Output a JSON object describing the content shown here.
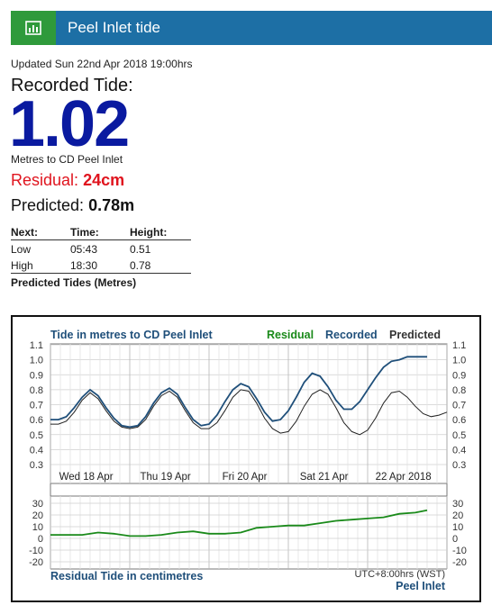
{
  "header": {
    "title": "Peel Inlet tide",
    "icon": "bar-chart-icon"
  },
  "updated": "Updated Sun 22nd Apr 2018 19:00hrs",
  "recorded": {
    "label": "Recorded Tide:",
    "value": "1.02",
    "units": "Metres to CD Peel Inlet"
  },
  "residual": {
    "label": "Residual:",
    "value": "24cm"
  },
  "predicted": {
    "label": "Predicted:",
    "value": "0.78m"
  },
  "next_tides": {
    "headers": [
      "Next:",
      "Time:",
      "Height:"
    ],
    "rows": [
      [
        "Low",
        "05:43",
        "0.51"
      ],
      [
        "High",
        "18:30",
        "0.78"
      ]
    ],
    "caption": "Predicted Tides (Metres)"
  },
  "colors": {
    "header_bg": "#1d6fa5",
    "icon_bg": "#2f9a3b",
    "value_blue": "#0a1aa0",
    "residual_red": "#e0141e",
    "recorded_line": "#1f4f7a",
    "predicted_line": "#222222",
    "residual_line": "#1a8a1a"
  },
  "chart_data": [
    {
      "type": "line",
      "title": "Tide in metres to CD Peel Inlet",
      "legend": [
        "Residual",
        "Recorded",
        "Predicted"
      ],
      "legend_position": "top-right",
      "y_ticks": [
        "1.1",
        "1.0",
        "0.9",
        "0.8",
        "0.7",
        "0.6",
        "0.5",
        "0.4",
        "0.3"
      ],
      "ylim": [
        0.3,
        1.1
      ],
      "x_labels": [
        "Wed 18 Apr",
        "Thu 19 Apr",
        "Fri 20 Apr",
        "Sat 21 Apr",
        "22 Apr 2018"
      ],
      "grid": true,
      "series": [
        {
          "name": "Recorded",
          "x": [
            0,
            0.1,
            0.2,
            0.3,
            0.4,
            0.5,
            0.6,
            0.7,
            0.8,
            0.9,
            1.0,
            1.1,
            1.2,
            1.3,
            1.4,
            1.5,
            1.6,
            1.7,
            1.8,
            1.9,
            2.0,
            2.1,
            2.2,
            2.3,
            2.4,
            2.5,
            2.6,
            2.7,
            2.8,
            2.9,
            3.0,
            3.1,
            3.2,
            3.3,
            3.4,
            3.5,
            3.6,
            3.7,
            3.8,
            3.9,
            4.0,
            4.1,
            4.2,
            4.3,
            4.4,
            4.5,
            4.6,
            4.65,
            4.7,
            4.75
          ],
          "y": [
            0.6,
            0.6,
            0.62,
            0.68,
            0.75,
            0.8,
            0.76,
            0.68,
            0.61,
            0.56,
            0.55,
            0.56,
            0.62,
            0.71,
            0.78,
            0.81,
            0.77,
            0.68,
            0.6,
            0.56,
            0.57,
            0.63,
            0.72,
            0.8,
            0.84,
            0.82,
            0.74,
            0.65,
            0.59,
            0.6,
            0.66,
            0.75,
            0.85,
            0.91,
            0.89,
            0.82,
            0.73,
            0.67,
            0.67,
            0.72,
            0.8,
            0.88,
            0.95,
            0.99,
            1.0,
            1.02,
            1.02,
            1.02,
            1.02,
            1.02
          ]
        },
        {
          "name": "Predicted",
          "x": [
            0,
            0.1,
            0.2,
            0.3,
            0.4,
            0.5,
            0.6,
            0.7,
            0.8,
            0.9,
            1.0,
            1.1,
            1.2,
            1.3,
            1.4,
            1.5,
            1.6,
            1.7,
            1.8,
            1.9,
            2.0,
            2.1,
            2.2,
            2.3,
            2.4,
            2.5,
            2.6,
            2.7,
            2.8,
            2.9,
            3.0,
            3.1,
            3.2,
            3.3,
            3.4,
            3.5,
            3.6,
            3.7,
            3.8,
            3.9,
            4.0,
            4.1,
            4.2,
            4.3,
            4.4,
            4.5,
            4.6,
            4.7,
            4.8,
            4.9,
            5.0
          ],
          "y": [
            0.57,
            0.57,
            0.59,
            0.65,
            0.73,
            0.78,
            0.74,
            0.66,
            0.59,
            0.55,
            0.54,
            0.55,
            0.6,
            0.69,
            0.76,
            0.79,
            0.75,
            0.66,
            0.58,
            0.54,
            0.54,
            0.58,
            0.66,
            0.75,
            0.8,
            0.79,
            0.71,
            0.61,
            0.54,
            0.51,
            0.52,
            0.59,
            0.69,
            0.77,
            0.8,
            0.77,
            0.68,
            0.58,
            0.52,
            0.5,
            0.53,
            0.61,
            0.71,
            0.78,
            0.79,
            0.75,
            0.69,
            0.64,
            0.62,
            0.63,
            0.65
          ]
        }
      ]
    },
    {
      "type": "line",
      "title": "Residual Tide in centimetres",
      "y_ticks": [
        "30",
        "20",
        "10",
        "0",
        "-10",
        "-20"
      ],
      "ylim": [
        -20,
        30
      ],
      "timezone": "UTC+8:00hrs (WST)",
      "location": "Peel Inlet",
      "grid": true,
      "series": [
        {
          "name": "Residual",
          "x": [
            0,
            0.2,
            0.4,
            0.6,
            0.8,
            1.0,
            1.2,
            1.4,
            1.6,
            1.8,
            2.0,
            2.2,
            2.4,
            2.6,
            2.8,
            3.0,
            3.2,
            3.4,
            3.6,
            3.8,
            4.0,
            4.2,
            4.4,
            4.6,
            4.75
          ],
          "y": [
            3,
            3,
            3,
            5,
            4,
            2,
            2,
            3,
            5,
            6,
            4,
            4,
            5,
            9,
            10,
            11,
            11,
            13,
            15,
            16,
            17,
            18,
            21,
            22,
            24
          ]
        }
      ]
    }
  ]
}
